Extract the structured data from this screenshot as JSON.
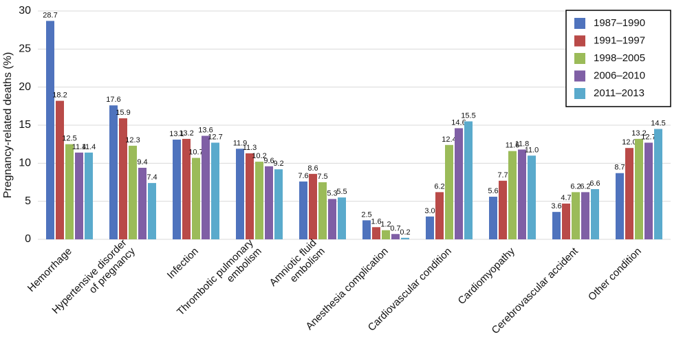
{
  "chart_data": {
    "type": "bar",
    "y_label": "Pregnancy-related deaths (%)",
    "categories": [
      "Hemorrhage",
      "Hypertensive disorder\nof pregnancy",
      "Infection",
      "Thrombotic pulmonary\nembolism",
      "Amniotic fluid\nembolism",
      "Anesthesia complication",
      "Cardiovascular condition",
      "Cardiomyopathy",
      "Cerebrovascular accident",
      "Other condition"
    ],
    "series": [
      {
        "name": "1987–1990",
        "color": "#4f73bd",
        "values": [
          28.7,
          17.6,
          13.1,
          11.9,
          7.6,
          2.5,
          3.0,
          5.6,
          3.6,
          8.7
        ],
        "value_labels": [
          "28.7",
          "17.6",
          "13.1",
          "11.9",
          "7.6",
          "2.5",
          "3.0",
          "5.6",
          "3.6",
          "8.7"
        ]
      },
      {
        "name": "1991–1997",
        "color": "#b94a48",
        "values": [
          18.2,
          15.9,
          13.2,
          11.3,
          8.6,
          1.6,
          6.2,
          7.7,
          4.7,
          12.0
        ],
        "value_labels": [
          "18.2",
          "15.9",
          "13.2",
          "11.3",
          "8.6",
          "1.6",
          "6.2",
          "7.7",
          "4.7",
          "12.0"
        ]
      },
      {
        "name": "1998–2005",
        "color": "#9bbb59",
        "values": [
          12.5,
          12.3,
          10.7,
          10.2,
          7.5,
          1.2,
          12.4,
          11.6,
          6.2,
          13.2
        ],
        "value_labels": [
          "12.5",
          "12.3",
          "10.7",
          "10.2",
          "7.5",
          "1.2",
          "12.4",
          "11.6",
          "6.2",
          "13.2"
        ]
      },
      {
        "name": "2006–2010",
        "color": "#7f5fa5",
        "values": [
          11.4,
          9.4,
          13.6,
          9.6,
          5.3,
          0.7,
          14.6,
          11.8,
          6.2,
          12.7
        ],
        "value_labels": [
          "11.4",
          "9.4",
          "13.6",
          "9.6",
          "5.3",
          "0.7",
          "14.6",
          "11.8",
          "6.2",
          "12.7"
        ]
      },
      {
        "name": "2011–2013",
        "color": "#5aaacc",
        "values": [
          11.4,
          7.4,
          12.7,
          9.2,
          5.5,
          0.2,
          15.5,
          11.0,
          6.6,
          14.5
        ],
        "value_labels": [
          "11.4",
          "7.4",
          "12.7",
          "9.2",
          "5.5",
          "0.2",
          "15.5",
          "11.0",
          "6.6",
          "14.5"
        ]
      }
    ],
    "ylim": [
      0,
      30
    ],
    "yticks": [
      0,
      5,
      10,
      15,
      20,
      25,
      30
    ],
    "grid": true,
    "legend": "upper right"
  }
}
